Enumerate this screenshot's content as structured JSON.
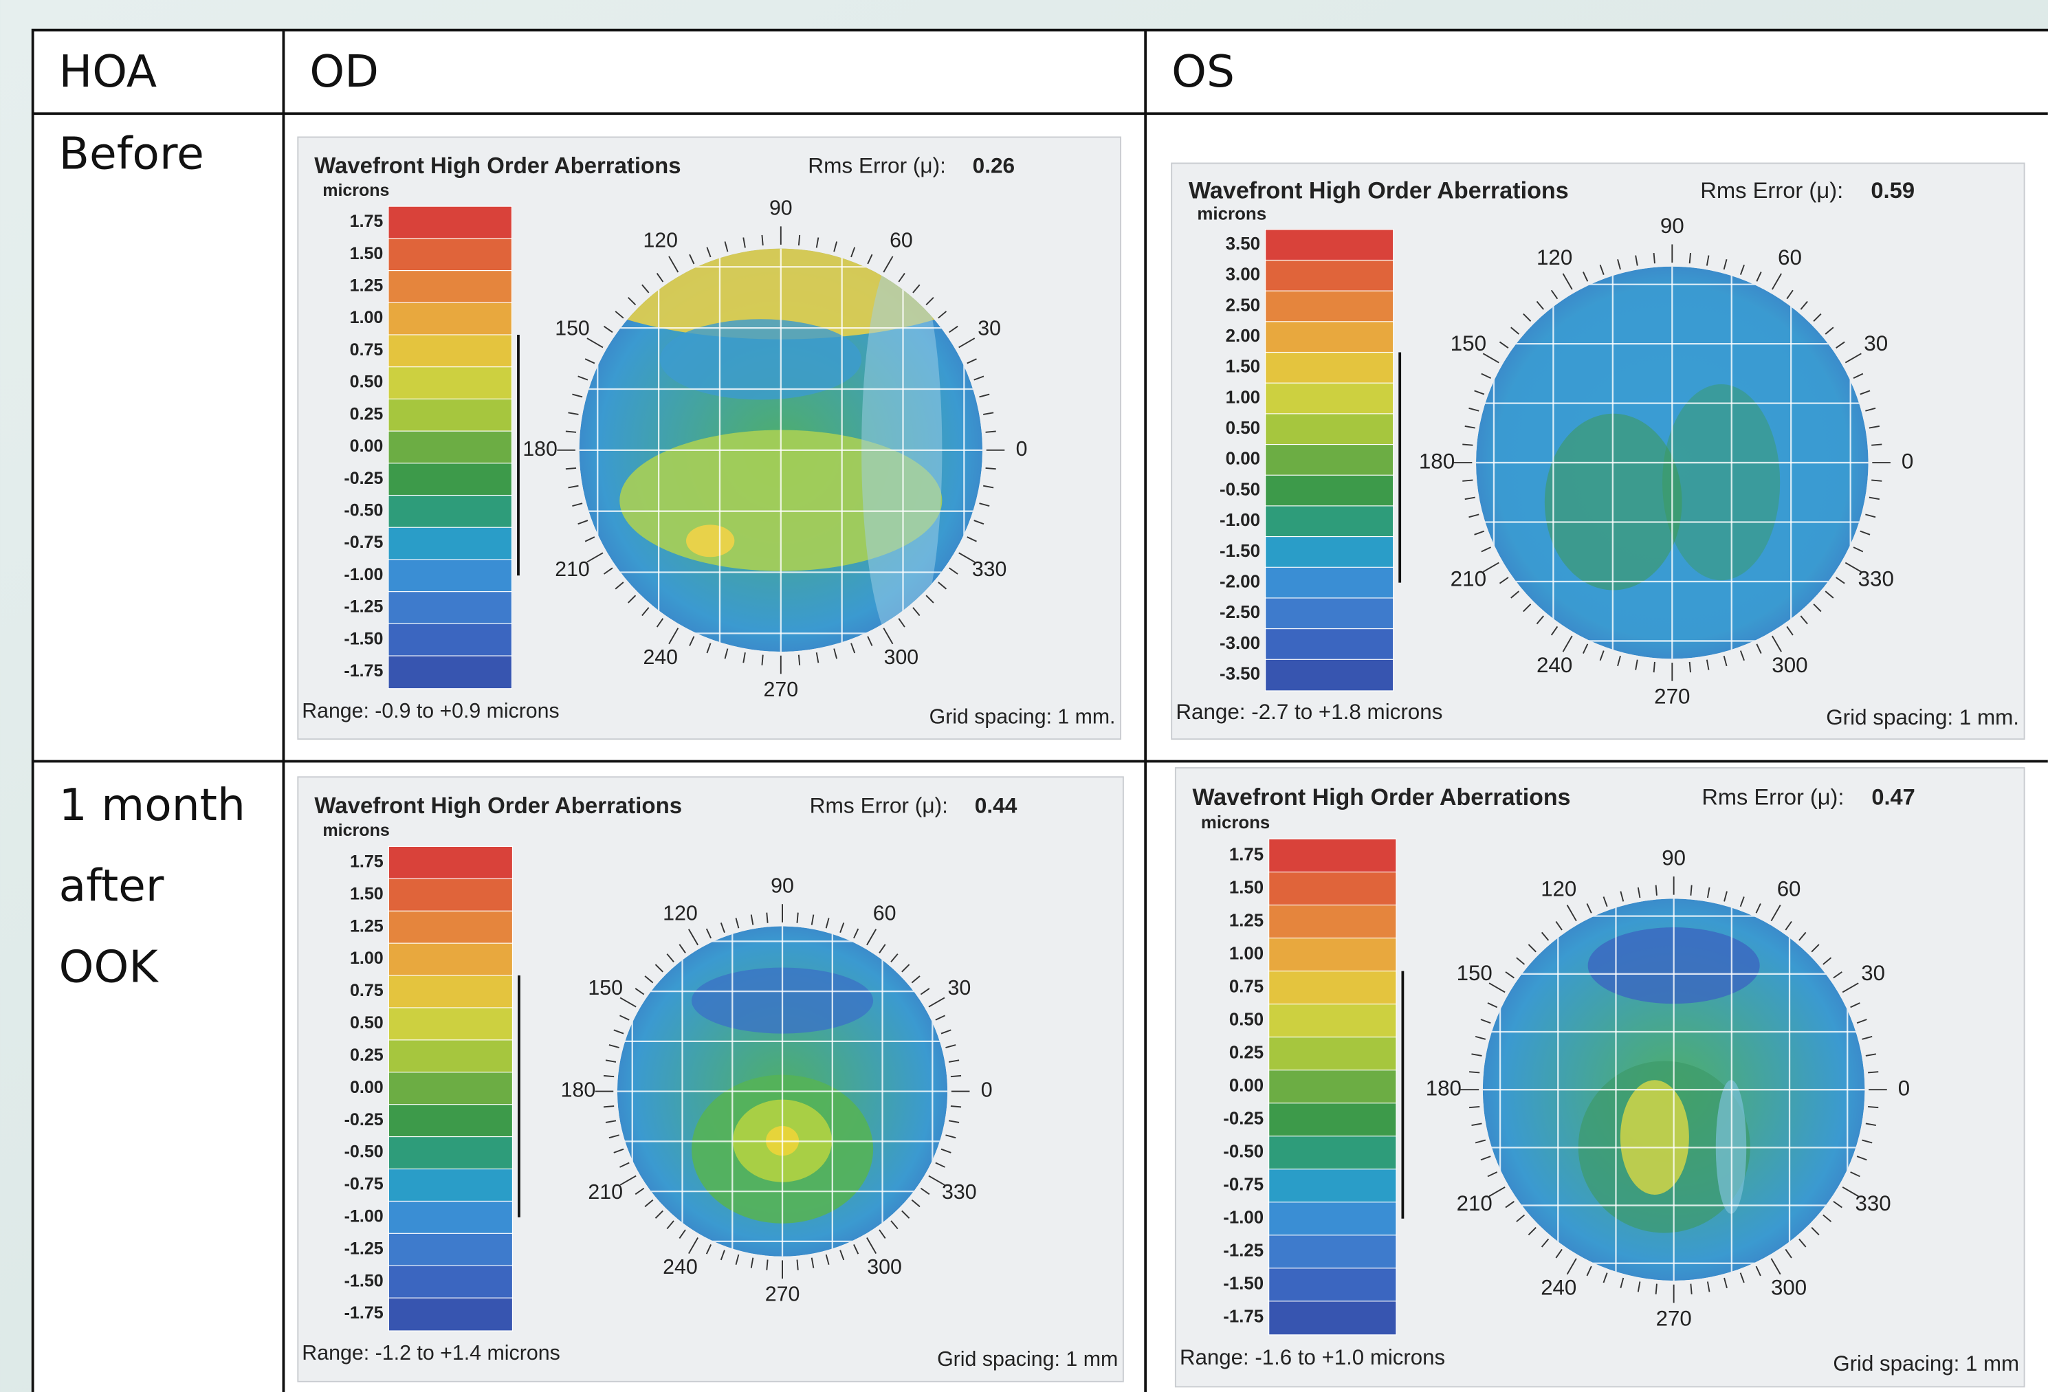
{
  "table": {
    "header": [
      "HOA",
      "OD",
      "OS"
    ],
    "rows": [
      {
        "label": "Before",
        "maps": [
          {
            "title": "Wavefront High Order Aberrations",
            "rms_label": "Rms Error (μ):",
            "rms": "0.26",
            "unit": "microns",
            "scale": [
              "1.75",
              "1.50",
              "1.25",
              "1.00",
              "0.75",
              "0.50",
              "0.25",
              "0.00",
              "-0.25",
              "-0.50",
              "-0.75",
              "-1.00",
              "-1.25",
              "-1.50",
              "-1.75"
            ],
            "angles": [
              "90",
              "60",
              "30",
              "0",
              "330",
              "300",
              "270",
              "240",
              "210",
              "180",
              "150",
              "120"
            ],
            "range": "Range: -0.9 to +0.9 microns",
            "grid_spacing": "Grid spacing: 1 mm."
          },
          {
            "title": "Wavefront High Order Aberrations",
            "rms_label": "Rms Error (μ):",
            "rms": "0.59",
            "unit": "microns",
            "scale": [
              "3.50",
              "3.00",
              "2.50",
              "2.00",
              "1.50",
              "1.00",
              "0.50",
              "0.00",
              "-0.50",
              "-1.00",
              "-1.50",
              "-2.00",
              "-2.50",
              "-3.00",
              "-3.50"
            ],
            "angles": [
              "90",
              "60",
              "30",
              "0",
              "330",
              "300",
              "270",
              "240",
              "210",
              "180",
              "150",
              "120"
            ],
            "range": "Range: -2.7 to +1.8 microns",
            "grid_spacing": "Grid spacing: 1 mm."
          }
        ]
      },
      {
        "label": "1 month after OOK",
        "maps": [
          {
            "title": "Wavefront High Order Aberrations",
            "rms_label": "Rms Error (μ):",
            "rms": "0.44",
            "unit": "microns",
            "scale": [
              "1.75",
              "1.50",
              "1.25",
              "1.00",
              "0.75",
              "0.50",
              "0.25",
              "0.00",
              "-0.25",
              "-0.50",
              "-0.75",
              "-1.00",
              "-1.25",
              "-1.50",
              "-1.75"
            ],
            "angles": [
              "90",
              "60",
              "30",
              "0",
              "330",
              "300",
              "270",
              "240",
              "210",
              "180",
              "150",
              "120"
            ],
            "range": "Range: -1.2 to +1.4 microns",
            "grid_spacing": "Grid spacing: 1 mm"
          },
          {
            "title": "Wavefront High Order Aberrations",
            "rms_label": "Rms Error (μ):",
            "rms": "0.47",
            "unit": "microns",
            "scale": [
              "1.75",
              "1.50",
              "1.25",
              "1.00",
              "0.75",
              "0.50",
              "0.25",
              "0.00",
              "-0.25",
              "-0.50",
              "-0.75",
              "-1.00",
              "-1.25",
              "-1.50",
              "-1.75"
            ],
            "angles": [
              "90",
              "60",
              "30",
              "0",
              "330",
              "300",
              "270",
              "240",
              "210",
              "180",
              "150",
              "120"
            ],
            "range": "Range: -1.6 to +1.0 microns",
            "grid_spacing": "Grid spacing: 1 mm"
          }
        ]
      }
    ]
  }
}
